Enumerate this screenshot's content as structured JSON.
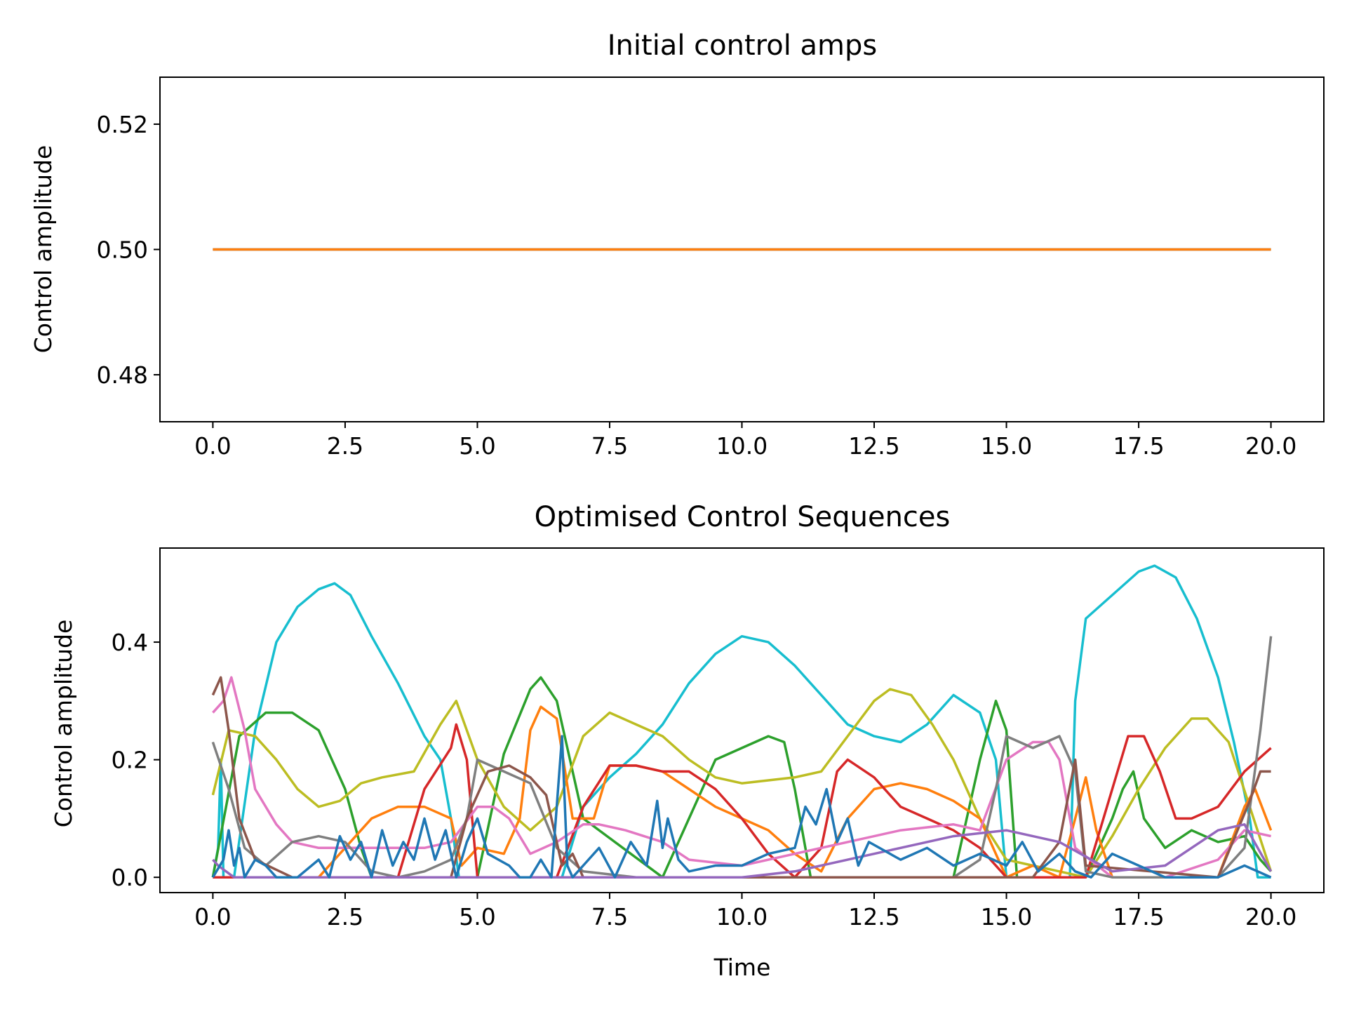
{
  "colors": {
    "background": "#ffffff",
    "axes": "#000000",
    "palette": [
      "#1f77b4",
      "#ff7f0e",
      "#2ca02c",
      "#d62728",
      "#9467bd",
      "#8c564b",
      "#e377c2",
      "#7f7f7f",
      "#bcbd22",
      "#17becf"
    ]
  },
  "chart_data": [
    {
      "type": "line",
      "title": "Initial control amps",
      "xlabel": "",
      "ylabel": "Control amplitude",
      "xlim": [
        -1.0,
        21.0
      ],
      "ylim": [
        0.4725,
        0.5275
      ],
      "xticks": [
        "0.0",
        "2.5",
        "5.0",
        "7.5",
        "10.0",
        "12.5",
        "15.0",
        "17.5",
        "20.0"
      ],
      "yticks": [
        "0.48",
        "0.50",
        "0.52"
      ],
      "grid": false,
      "legend": "none",
      "series": [
        {
          "color": "#1f77b4",
          "x": [
            0,
            20
          ],
          "y": [
            0.5,
            0.5
          ]
        },
        {
          "color": "#ff7f0e",
          "x": [
            0,
            20
          ],
          "y": [
            0.5,
            0.5
          ]
        }
      ]
    },
    {
      "type": "line",
      "title": "Optimised Control Sequences",
      "xlabel": "Time",
      "ylabel": "Control amplitude",
      "xlim": [
        -1.0,
        21.0
      ],
      "ylim": [
        -0.026,
        0.56
      ],
      "xticks": [
        "0.0",
        "2.5",
        "5.0",
        "7.5",
        "10.0",
        "12.5",
        "15.0",
        "17.5",
        "20.0"
      ],
      "yticks": [
        "0.0",
        "0.2",
        "0.4"
      ],
      "grid": false,
      "legend": "none",
      "series": [
        {
          "color": "#17becf",
          "x": [
            0,
            0.1,
            0.15,
            0.2,
            0.4,
            0.8,
            1.2,
            1.6,
            2.0,
            2.3,
            2.6,
            3.0,
            3.5,
            4.0,
            4.3,
            4.5,
            4.65,
            5.5,
            6.0,
            6.3,
            6.5,
            6.6,
            7.0,
            7.5,
            8.0,
            8.5,
            9.0,
            9.5,
            10.0,
            10.5,
            11.0,
            11.5,
            12.0,
            12.5,
            13.0,
            13.5,
            14.0,
            14.5,
            14.8,
            15.0,
            16.0,
            16.2,
            16.3,
            16.5,
            17.0,
            17.5,
            17.8,
            18.2,
            18.6,
            19.0,
            19.3,
            19.6,
            19.75,
            20.0
          ],
          "y": [
            0.0,
            0.05,
            0.2,
            0.0,
            0.0,
            0.25,
            0.4,
            0.46,
            0.49,
            0.5,
            0.48,
            0.41,
            0.33,
            0.24,
            0.2,
            0.1,
            0.0,
            0.0,
            0.0,
            0.0,
            0.0,
            0.0,
            0.12,
            0.17,
            0.21,
            0.26,
            0.33,
            0.38,
            0.41,
            0.4,
            0.36,
            0.31,
            0.26,
            0.24,
            0.23,
            0.26,
            0.31,
            0.28,
            0.2,
            0.0,
            0.0,
            0.0,
            0.3,
            0.44,
            0.48,
            0.52,
            0.53,
            0.51,
            0.44,
            0.34,
            0.23,
            0.1,
            0.0,
            0.0
          ]
        },
        {
          "color": "#2ca02c",
          "x": [
            0,
            0.5,
            1.0,
            1.5,
            2.0,
            2.5,
            2.8,
            3.0,
            5.0,
            5.5,
            6.0,
            6.2,
            6.5,
            7.0,
            8.5,
            9.0,
            9.5,
            10.0,
            10.5,
            10.8,
            11.0,
            11.3,
            14.0,
            14.5,
            14.8,
            15.0,
            15.2,
            16.5,
            17.0,
            17.2,
            17.4,
            17.6,
            18.0,
            18.5,
            19.0,
            19.5,
            19.8,
            20.0
          ],
          "y": [
            0.0,
            0.24,
            0.28,
            0.28,
            0.25,
            0.15,
            0.05,
            0.0,
            0.0,
            0.21,
            0.32,
            0.34,
            0.3,
            0.1,
            0.0,
            0.1,
            0.2,
            0.22,
            0.24,
            0.23,
            0.15,
            0.0,
            0.0,
            0.2,
            0.3,
            0.25,
            0.0,
            0.0,
            0.1,
            0.15,
            0.18,
            0.1,
            0.05,
            0.08,
            0.06,
            0.07,
            0.03,
            0.01
          ]
        },
        {
          "color": "#bcbd22",
          "x": [
            0,
            0.3,
            0.8,
            1.2,
            1.6,
            2.0,
            2.4,
            2.8,
            3.2,
            3.8,
            4.3,
            4.6,
            5.0,
            5.5,
            6.0,
            6.5,
            7.0,
            7.5,
            8.0,
            8.5,
            9.0,
            9.5,
            10.0,
            10.5,
            11.0,
            11.5,
            12.0,
            12.5,
            12.8,
            13.2,
            13.6,
            14.0,
            14.5,
            15.0,
            15.5,
            16.0,
            16.5,
            17.0,
            17.5,
            18.0,
            18.5,
            18.8,
            19.2,
            19.6,
            20.0
          ],
          "y": [
            0.14,
            0.25,
            0.24,
            0.2,
            0.15,
            0.12,
            0.13,
            0.16,
            0.17,
            0.18,
            0.26,
            0.3,
            0.2,
            0.12,
            0.08,
            0.12,
            0.24,
            0.28,
            0.26,
            0.24,
            0.2,
            0.17,
            0.16,
            0.165,
            0.17,
            0.18,
            0.24,
            0.3,
            0.32,
            0.31,
            0.26,
            0.2,
            0.1,
            0.03,
            0.02,
            0.01,
            0.0,
            0.07,
            0.15,
            0.22,
            0.27,
            0.27,
            0.23,
            0.12,
            0.01
          ]
        },
        {
          "color": "#ff7f0e",
          "x": [
            0,
            2.0,
            2.5,
            3.0,
            3.5,
            4.0,
            4.5,
            4.7,
            5.0,
            5.5,
            5.8,
            6.0,
            6.2,
            6.5,
            6.8,
            7.2,
            7.5,
            8.0,
            8.5,
            9.0,
            9.5,
            10.0,
            10.5,
            11.0,
            11.5,
            12.0,
            12.5,
            13.0,
            13.5,
            14.0,
            14.5,
            15.0,
            15.5,
            16.0,
            16.3,
            16.5,
            16.7,
            17.0,
            18.0,
            19.0,
            19.5,
            19.7,
            20.0
          ],
          "y": [
            0.0,
            0.0,
            0.05,
            0.1,
            0.12,
            0.12,
            0.1,
            0.02,
            0.05,
            0.04,
            0.1,
            0.25,
            0.29,
            0.27,
            0.1,
            0.1,
            0.19,
            0.19,
            0.18,
            0.15,
            0.12,
            0.1,
            0.08,
            0.04,
            0.01,
            0.1,
            0.15,
            0.16,
            0.15,
            0.13,
            0.1,
            0.0,
            0.02,
            0.0,
            0.1,
            0.17,
            0.08,
            0.0,
            0.0,
            0.0,
            0.12,
            0.15,
            0.08
          ]
        },
        {
          "color": "#d62728",
          "x": [
            0,
            3.5,
            4.0,
            4.5,
            4.6,
            4.8,
            5.0,
            6.5,
            7.0,
            7.5,
            8.0,
            8.5,
            9.0,
            9.5,
            10.0,
            10.5,
            11.0,
            11.5,
            11.8,
            12.0,
            12.5,
            13.0,
            13.5,
            14.0,
            14.5,
            15.0,
            16.5,
            17.0,
            17.3,
            17.6,
            17.9,
            18.2,
            18.5,
            19.0,
            19.5,
            20.0
          ],
          "y": [
            0.0,
            0.0,
            0.15,
            0.22,
            0.26,
            0.2,
            0.0,
            0.0,
            0.12,
            0.19,
            0.19,
            0.18,
            0.18,
            0.15,
            0.1,
            0.04,
            0.0,
            0.05,
            0.18,
            0.2,
            0.17,
            0.12,
            0.1,
            0.08,
            0.05,
            0.0,
            0.0,
            0.15,
            0.24,
            0.24,
            0.18,
            0.1,
            0.1,
            0.12,
            0.18,
            0.22
          ]
        },
        {
          "color": "#e377c2",
          "x": [
            0,
            0.2,
            0.35,
            0.6,
            0.8,
            1.2,
            1.5,
            2.0,
            3.0,
            4.0,
            4.5,
            5.0,
            5.3,
            5.6,
            6.0,
            6.5,
            7.0,
            7.3,
            7.8,
            8.5,
            9.0,
            10.0,
            11.0,
            12.0,
            13.0,
            14.0,
            14.5,
            15.0,
            15.5,
            15.8,
            16.0,
            16.3,
            17.0,
            18.0,
            19.0,
            19.5,
            20.0
          ],
          "y": [
            0.28,
            0.3,
            0.34,
            0.25,
            0.15,
            0.09,
            0.06,
            0.05,
            0.05,
            0.05,
            0.06,
            0.12,
            0.12,
            0.1,
            0.04,
            0.06,
            0.09,
            0.09,
            0.08,
            0.06,
            0.03,
            0.02,
            0.04,
            0.06,
            0.08,
            0.09,
            0.08,
            0.2,
            0.23,
            0.23,
            0.2,
            0.05,
            0.0,
            0.0,
            0.03,
            0.08,
            0.07
          ]
        },
        {
          "color": "#7f7f7f",
          "x": [
            0,
            0.3,
            0.6,
            1.0,
            1.5,
            2.0,
            2.5,
            3.0,
            3.5,
            4.0,
            4.5,
            4.8,
            5.0,
            5.5,
            6.0,
            6.5,
            7.0,
            8.0,
            9.0,
            10.0,
            11.0,
            12.0,
            13.0,
            14.0,
            14.5,
            14.8,
            15.0,
            15.5,
            16.0,
            16.3,
            16.5,
            17.0,
            18.0,
            19.0,
            19.5,
            19.8,
            20.0
          ],
          "y": [
            0.23,
            0.15,
            0.05,
            0.02,
            0.06,
            0.07,
            0.06,
            0.01,
            0.0,
            0.01,
            0.03,
            0.1,
            0.2,
            0.18,
            0.16,
            0.05,
            0.01,
            0.0,
            0.0,
            0.0,
            0.0,
            0.0,
            0.0,
            0.0,
            0.03,
            0.15,
            0.24,
            0.22,
            0.24,
            0.18,
            0.01,
            0.0,
            0.0,
            0.0,
            0.05,
            0.25,
            0.41
          ]
        },
        {
          "color": "#8c564b",
          "x": [
            0,
            0.15,
            0.3,
            0.5,
            0.8,
            1.5,
            4.5,
            4.8,
            5.2,
            5.6,
            6.0,
            6.3,
            6.6,
            6.8,
            7.0,
            12.0,
            15.5,
            16.0,
            16.3,
            16.5,
            19.0,
            19.6,
            19.8,
            20.0
          ],
          "y": [
            0.31,
            0.34,
            0.25,
            0.1,
            0.03,
            0.0,
            0.0,
            0.1,
            0.18,
            0.19,
            0.17,
            0.14,
            0.02,
            0.04,
            0.0,
            0.0,
            0.0,
            0.06,
            0.2,
            0.02,
            0.0,
            0.13,
            0.18,
            0.18
          ]
        },
        {
          "color": "#9467bd",
          "x": [
            0,
            0.1,
            0.4,
            1.0,
            2.0,
            5.0,
            8.0,
            10.0,
            11.0,
            12.0,
            13.0,
            14.0,
            15.0,
            16.0,
            17.0,
            18.0,
            18.5,
            19.0,
            19.5,
            20.0
          ],
          "y": [
            0.03,
            0.02,
            0.0,
            0.0,
            0.0,
            0.0,
            0.0,
            0.0,
            0.01,
            0.03,
            0.05,
            0.07,
            0.08,
            0.06,
            0.01,
            0.02,
            0.05,
            0.08,
            0.09,
            0.01
          ]
        },
        {
          "color": "#1f77b4",
          "x": [
            0,
            0.2,
            0.3,
            0.4,
            0.5,
            0.6,
            0.8,
            1.0,
            1.2,
            1.4,
            1.6,
            2.0,
            2.2,
            2.4,
            2.6,
            2.8,
            3.0,
            3.2,
            3.4,
            3.6,
            3.8,
            4.0,
            4.2,
            4.4,
            4.6,
            4.8,
            5.0,
            5.2,
            5.4,
            5.6,
            5.8,
            6.0,
            6.2,
            6.4,
            6.6,
            6.7,
            6.8,
            7.0,
            7.3,
            7.6,
            7.9,
            8.2,
            8.4,
            8.5,
            8.6,
            8.8,
            9.0,
            9.5,
            10.0,
            10.5,
            11.0,
            11.2,
            11.4,
            11.6,
            11.8,
            12.0,
            12.2,
            12.4,
            13.0,
            13.5,
            14.0,
            14.5,
            15.0,
            15.3,
            15.6,
            16.0,
            16.3,
            16.6,
            17.0,
            17.5,
            18.0,
            18.5,
            19.0,
            19.5,
            20.0
          ],
          "y": [
            0.0,
            0.03,
            0.08,
            0.02,
            0.05,
            0.0,
            0.03,
            0.02,
            0.0,
            0.0,
            0.0,
            0.03,
            0.0,
            0.07,
            0.03,
            0.06,
            0.0,
            0.08,
            0.02,
            0.06,
            0.03,
            0.1,
            0.03,
            0.08,
            0.0,
            0.06,
            0.1,
            0.04,
            0.03,
            0.02,
            0.0,
            0.0,
            0.03,
            0.0,
            0.24,
            0.02,
            0.0,
            0.02,
            0.05,
            0.0,
            0.06,
            0.02,
            0.13,
            0.05,
            0.1,
            0.03,
            0.01,
            0.02,
            0.02,
            0.04,
            0.05,
            0.12,
            0.09,
            0.15,
            0.06,
            0.1,
            0.02,
            0.06,
            0.03,
            0.05,
            0.02,
            0.04,
            0.02,
            0.06,
            0.01,
            0.04,
            0.01,
            0.0,
            0.04,
            0.02,
            0.0,
            0.0,
            0.0,
            0.02,
            0.0
          ]
        }
      ]
    }
  ]
}
